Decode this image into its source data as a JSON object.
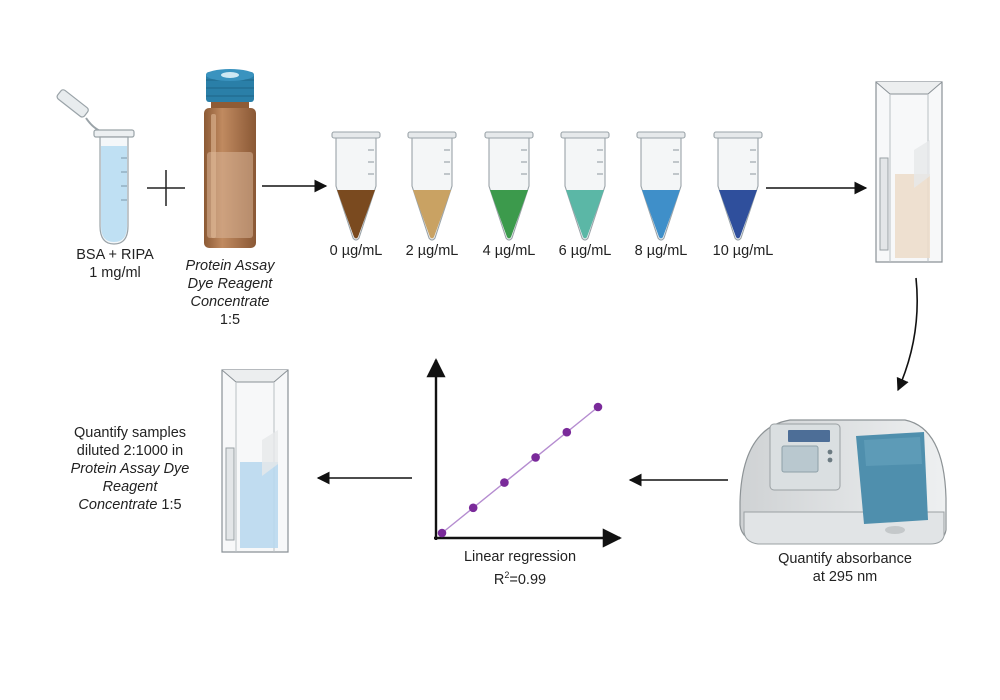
{
  "labels": {
    "bsa": {
      "line1": "BSA + RIPA",
      "line2": "1 mg/ml"
    },
    "dye": {
      "line1": "Protein Assay",
      "line2": "Dye Reagent",
      "line3": "Concentrate",
      "line4": "1:5"
    },
    "standards": [
      "0 µg/mL",
      "2 µg/mL",
      "4 µg/mL",
      "6 µg/mL",
      "8 µg/mL",
      "10 µg/mL"
    ],
    "absorbance": {
      "line1": "Quantify absorbance",
      "line2": "at 295 nm"
    },
    "regression": {
      "line1": "Linear regression",
      "line2_prefix": "R",
      "line2_sup": "2",
      "line2_suffix": "=0.99"
    },
    "samples": {
      "line1": "Quantify samples",
      "line2": "diluted 2:1000 in",
      "line3": "Protein Assay Dye",
      "line4": "Reagent",
      "line5_italic": "Concentrate",
      "line5_rest": " 1:5"
    }
  },
  "colors": {
    "standard_tubes": [
      "#7a4a1f",
      "#c9a263",
      "#3c9a4c",
      "#5bb7a6",
      "#3f8fc9",
      "#2f4f9c"
    ],
    "regression_points": "#7a2a9a",
    "regression_line": "#b58cd0",
    "bsa_liquid": "#bfe0f3",
    "bottle_glass": "#a9714a",
    "bottle_cap": "#2a7fa8"
  },
  "regression_series": [
    {
      "x": 0,
      "y": 0
    },
    {
      "x": 2,
      "y": 0.2
    },
    {
      "x": 4,
      "y": 0.4
    },
    {
      "x": 6,
      "y": 0.6
    },
    {
      "x": 8,
      "y": 0.8
    },
    {
      "x": 10,
      "y": 1.0
    }
  ]
}
